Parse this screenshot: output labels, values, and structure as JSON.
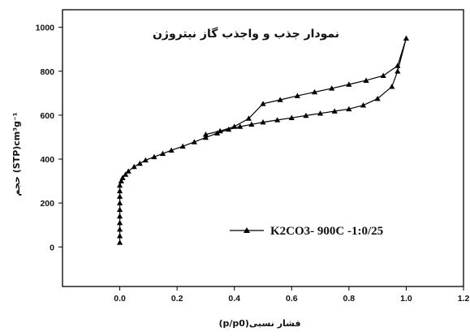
{
  "chart_data": {
    "type": "line",
    "title": "نمودار جذب و واجذب گاز نیتروژن",
    "xlabel": "(p/p0)فشار نسبی",
    "ylabel": "حجم (STP)cm³g⁻¹",
    "xlim": [
      -0.2,
      1.2
    ],
    "ylim": [
      -180,
      1080
    ],
    "x_ticks": [
      "0.0",
      "0.2",
      "0.4",
      "0.6",
      "0.8",
      "1.0",
      "1.2"
    ],
    "y_ticks": [
      "0",
      "200",
      "400",
      "600",
      "800",
      "1000"
    ],
    "grid": false,
    "legend_position": "lower-right",
    "series": [
      {
        "name": "K2CO3- 900C -1:0/25",
        "color": "#000000",
        "marker": "triangle",
        "x": [
          0.0,
          0.0,
          0.0,
          0.0,
          0.0,
          0.0,
          0.0,
          0.0,
          0.0,
          0.0,
          0.005,
          0.01,
          0.02,
          0.03,
          0.05,
          0.07,
          0.09,
          0.12,
          0.15,
          0.18,
          0.22,
          0.26,
          0.3,
          0.34,
          0.38,
          0.42,
          0.46,
          0.5,
          0.55,
          0.6,
          0.65,
          0.7,
          0.75,
          0.8,
          0.85,
          0.9,
          0.95,
          0.97,
          1.0,
          0.97,
          0.92,
          0.86,
          0.8,
          0.74,
          0.68,
          0.62,
          0.56,
          0.5,
          0.45,
          0.4,
          0.35,
          0.3
        ],
        "y": [
          20,
          50,
          80,
          110,
          140,
          170,
          200,
          230,
          255,
          280,
          300,
          315,
          330,
          345,
          365,
          380,
          395,
          410,
          425,
          440,
          458,
          478,
          498,
          518,
          535,
          548,
          558,
          568,
          578,
          588,
          598,
          608,
          618,
          628,
          645,
          675,
          730,
          800,
          950,
          825,
          780,
          758,
          740,
          722,
          705,
          688,
          670,
          652,
          585,
          548,
          528,
          512
        ]
      }
    ]
  }
}
